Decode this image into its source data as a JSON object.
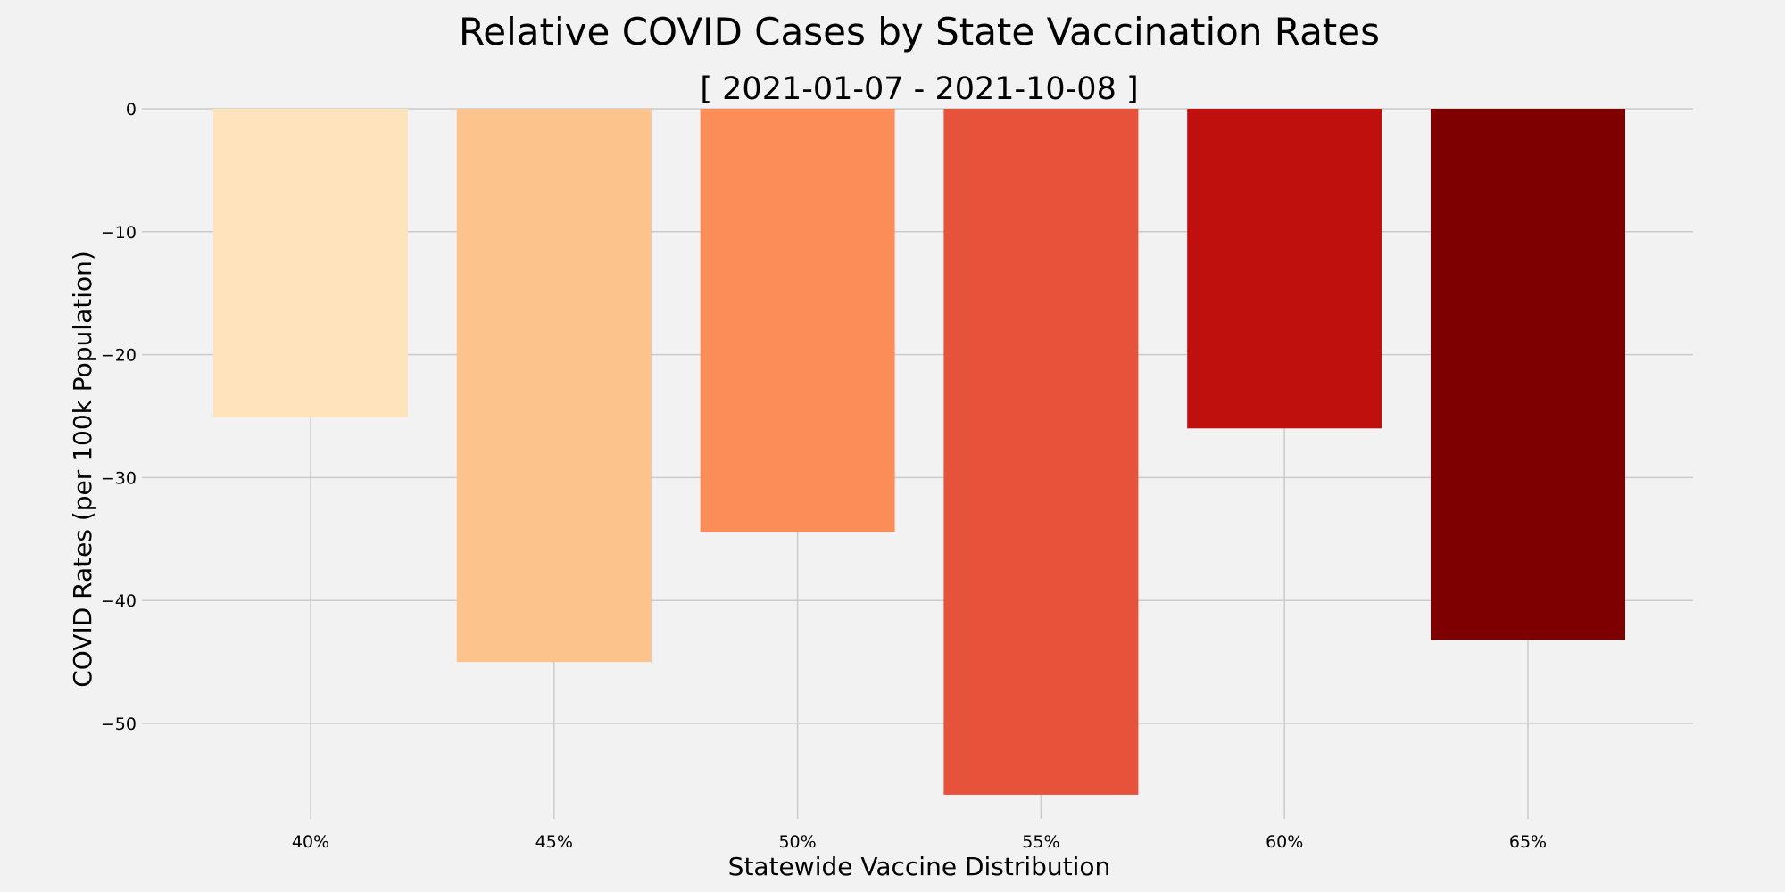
{
  "chart_data": {
    "type": "bar",
    "title": "Relative COVID Cases by State Vaccination Rates",
    "subtitle": "[ 2021-01-07 - 2021-10-08 ]",
    "xlabel": "Statewide Vaccine Distribution",
    "ylabel": "COVID Rates (per 100k Population)",
    "categories": [
      "40%",
      "45%",
      "50%",
      "55%",
      "60%",
      "65%"
    ],
    "values": [
      -25.1,
      -45.0,
      -34.4,
      -55.8,
      -26.0,
      -43.2
    ],
    "colors": [
      "#fee3bc",
      "#fdc38d",
      "#fc8d59",
      "#e7533a",
      "#bf100e",
      "#7f0000"
    ],
    "ylim": [
      -57.5,
      0
    ],
    "yticks": [
      0,
      -10,
      -20,
      -30,
      -40,
      -50
    ],
    "ytick_labels": [
      "0",
      "−10",
      "−20",
      "−30",
      "−40",
      "−50"
    ],
    "grid": true,
    "legend": "none"
  }
}
